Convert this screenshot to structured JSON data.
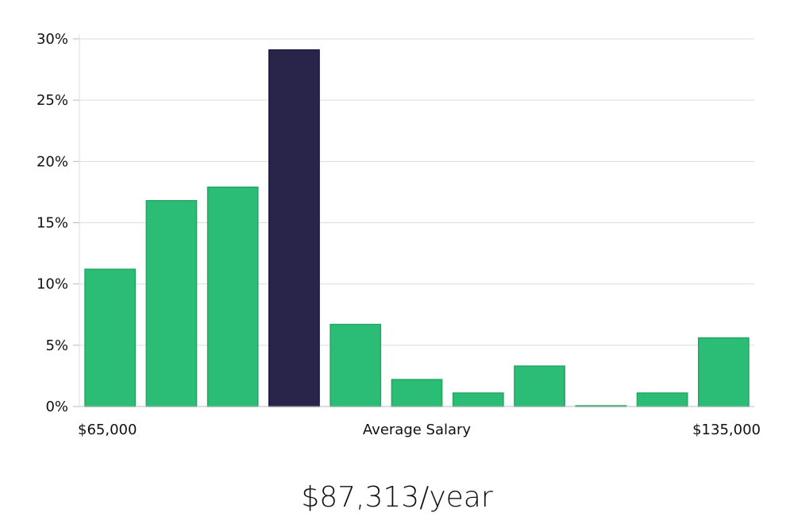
{
  "colors": {
    "bar": "#2bbd75",
    "bar_stroke": "#22a863",
    "highlight": "#29254a",
    "highlight_stroke": "#1a1740",
    "grid": "#dddddd",
    "axis": "#bbbbbb"
  },
  "chart_data": {
    "type": "bar",
    "x_min_label": "$65,000",
    "x_max_label": "$135,000",
    "xlabel": "Average Salary",
    "ylim": [
      0,
      30
    ],
    "yticks": [
      0,
      5,
      10,
      15,
      20,
      25,
      30
    ],
    "ytick_labels": [
      "0%",
      "5%",
      "10%",
      "15%",
      "20%",
      "25%",
      "30%"
    ],
    "values": [
      11.2,
      16.8,
      17.9,
      29.1,
      6.7,
      2.2,
      1.1,
      3.3,
      0.05,
      1.1,
      5.6
    ],
    "highlight_index": 3,
    "grid": true
  },
  "summary": {
    "average_salary": "$87,313/year"
  }
}
